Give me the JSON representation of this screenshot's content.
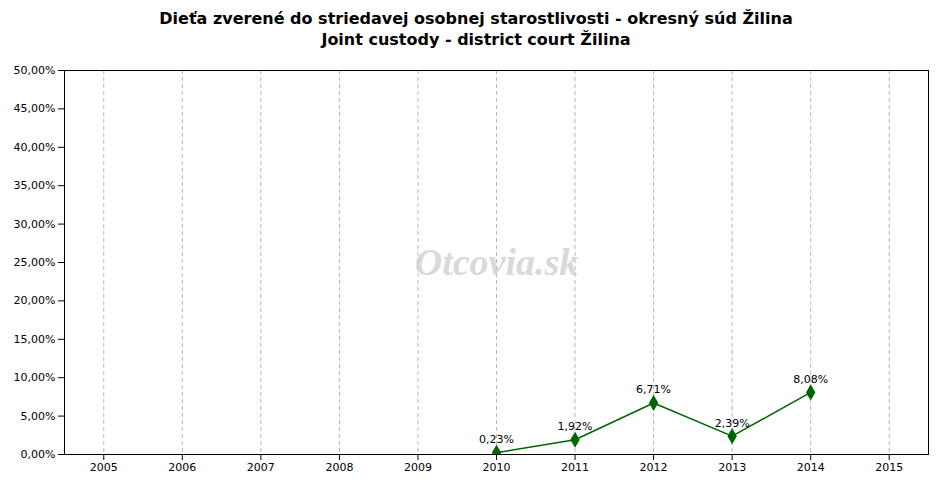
{
  "chart_data": {
    "type": "line",
    "title": "Dieťa zverené do striedavej osobnej starostlivosti - okresný súd Žilina",
    "subtitle": "Joint custody - district court Žilina",
    "annotation": "Otcovia.sk",
    "x": [
      2010,
      2011,
      2012,
      2013,
      2014
    ],
    "values": [
      0.0023,
      0.0192,
      0.0671,
      0.0239,
      0.0808
    ],
    "value_labels": [
      "0,23%",
      "1,92%",
      "6,71%",
      "2,39%",
      "8,08%"
    ],
    "data_labels": true,
    "color": "#006400",
    "marker": "diamond",
    "xlim": [
      2004.5,
      2015.5
    ],
    "xticks": [
      2005,
      2006,
      2007,
      2008,
      2009,
      2010,
      2011,
      2012,
      2013,
      2014,
      2015
    ],
    "ylim": [
      0.0,
      0.5
    ],
    "yticks": [
      {
        "value": 0.0,
        "label": "0,00%"
      },
      {
        "value": 0.05,
        "label": "5,00%"
      },
      {
        "value": 0.1,
        "label": "10,00%"
      },
      {
        "value": 0.15,
        "label": "15,00%"
      },
      {
        "value": 0.2,
        "label": "20,00%"
      },
      {
        "value": 0.25,
        "label": "25,00%"
      },
      {
        "value": 0.3,
        "label": "30,00%"
      },
      {
        "value": 0.35,
        "label": "35,00%"
      },
      {
        "value": 0.4,
        "label": "40,00%"
      },
      {
        "value": 0.45,
        "label": "45,00%"
      },
      {
        "value": 0.5,
        "label": "50,00%"
      }
    ],
    "grid": "x"
  }
}
